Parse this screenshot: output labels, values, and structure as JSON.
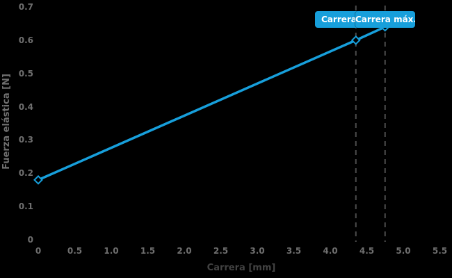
{
  "chart_data": {
    "type": "line",
    "title": "",
    "xlabel": "Carrera [mm]",
    "ylabel": "Fuerza elástica [N]",
    "xlim": [
      0,
      5.5
    ],
    "ylim": [
      0,
      0.7
    ],
    "x_ticks": [
      "0",
      "0.5",
      "1.0",
      "1.5",
      "2.0",
      "2.5",
      "3.0",
      "3.5",
      "4.0",
      "4.5",
      "5.0",
      "5.5"
    ],
    "y_ticks": [
      "0",
      "0.1",
      "0.2",
      "0.3",
      "0.4",
      "0.5",
      "0.6",
      "0.7"
    ],
    "grid": false,
    "legend": "none",
    "series": [
      {
        "name": "Fuerza elástica",
        "points": [
          {
            "x": 0,
            "y": 0.18
          },
          {
            "x": 4.35,
            "y": 0.6
          },
          {
            "x": 4.75,
            "y": 0.64
          }
        ]
      }
    ],
    "reference_lines": [
      {
        "x": 4.35,
        "label": "Carrera d",
        "style": "dashed"
      },
      {
        "x": 4.75,
        "label": "Carrera máx.",
        "style": "dashed"
      }
    ]
  },
  "colors": {
    "background": "#000000",
    "line": "#179fdb",
    "marker_fill": "#000000",
    "badge_background": "#179fdb",
    "badge_text": "#ffffff",
    "dashed_line": "#4d4d4d",
    "tick_label": "#6f6f6f",
    "y_axis_title": "#6f6f6f",
    "x_axis_title": "#424242"
  }
}
